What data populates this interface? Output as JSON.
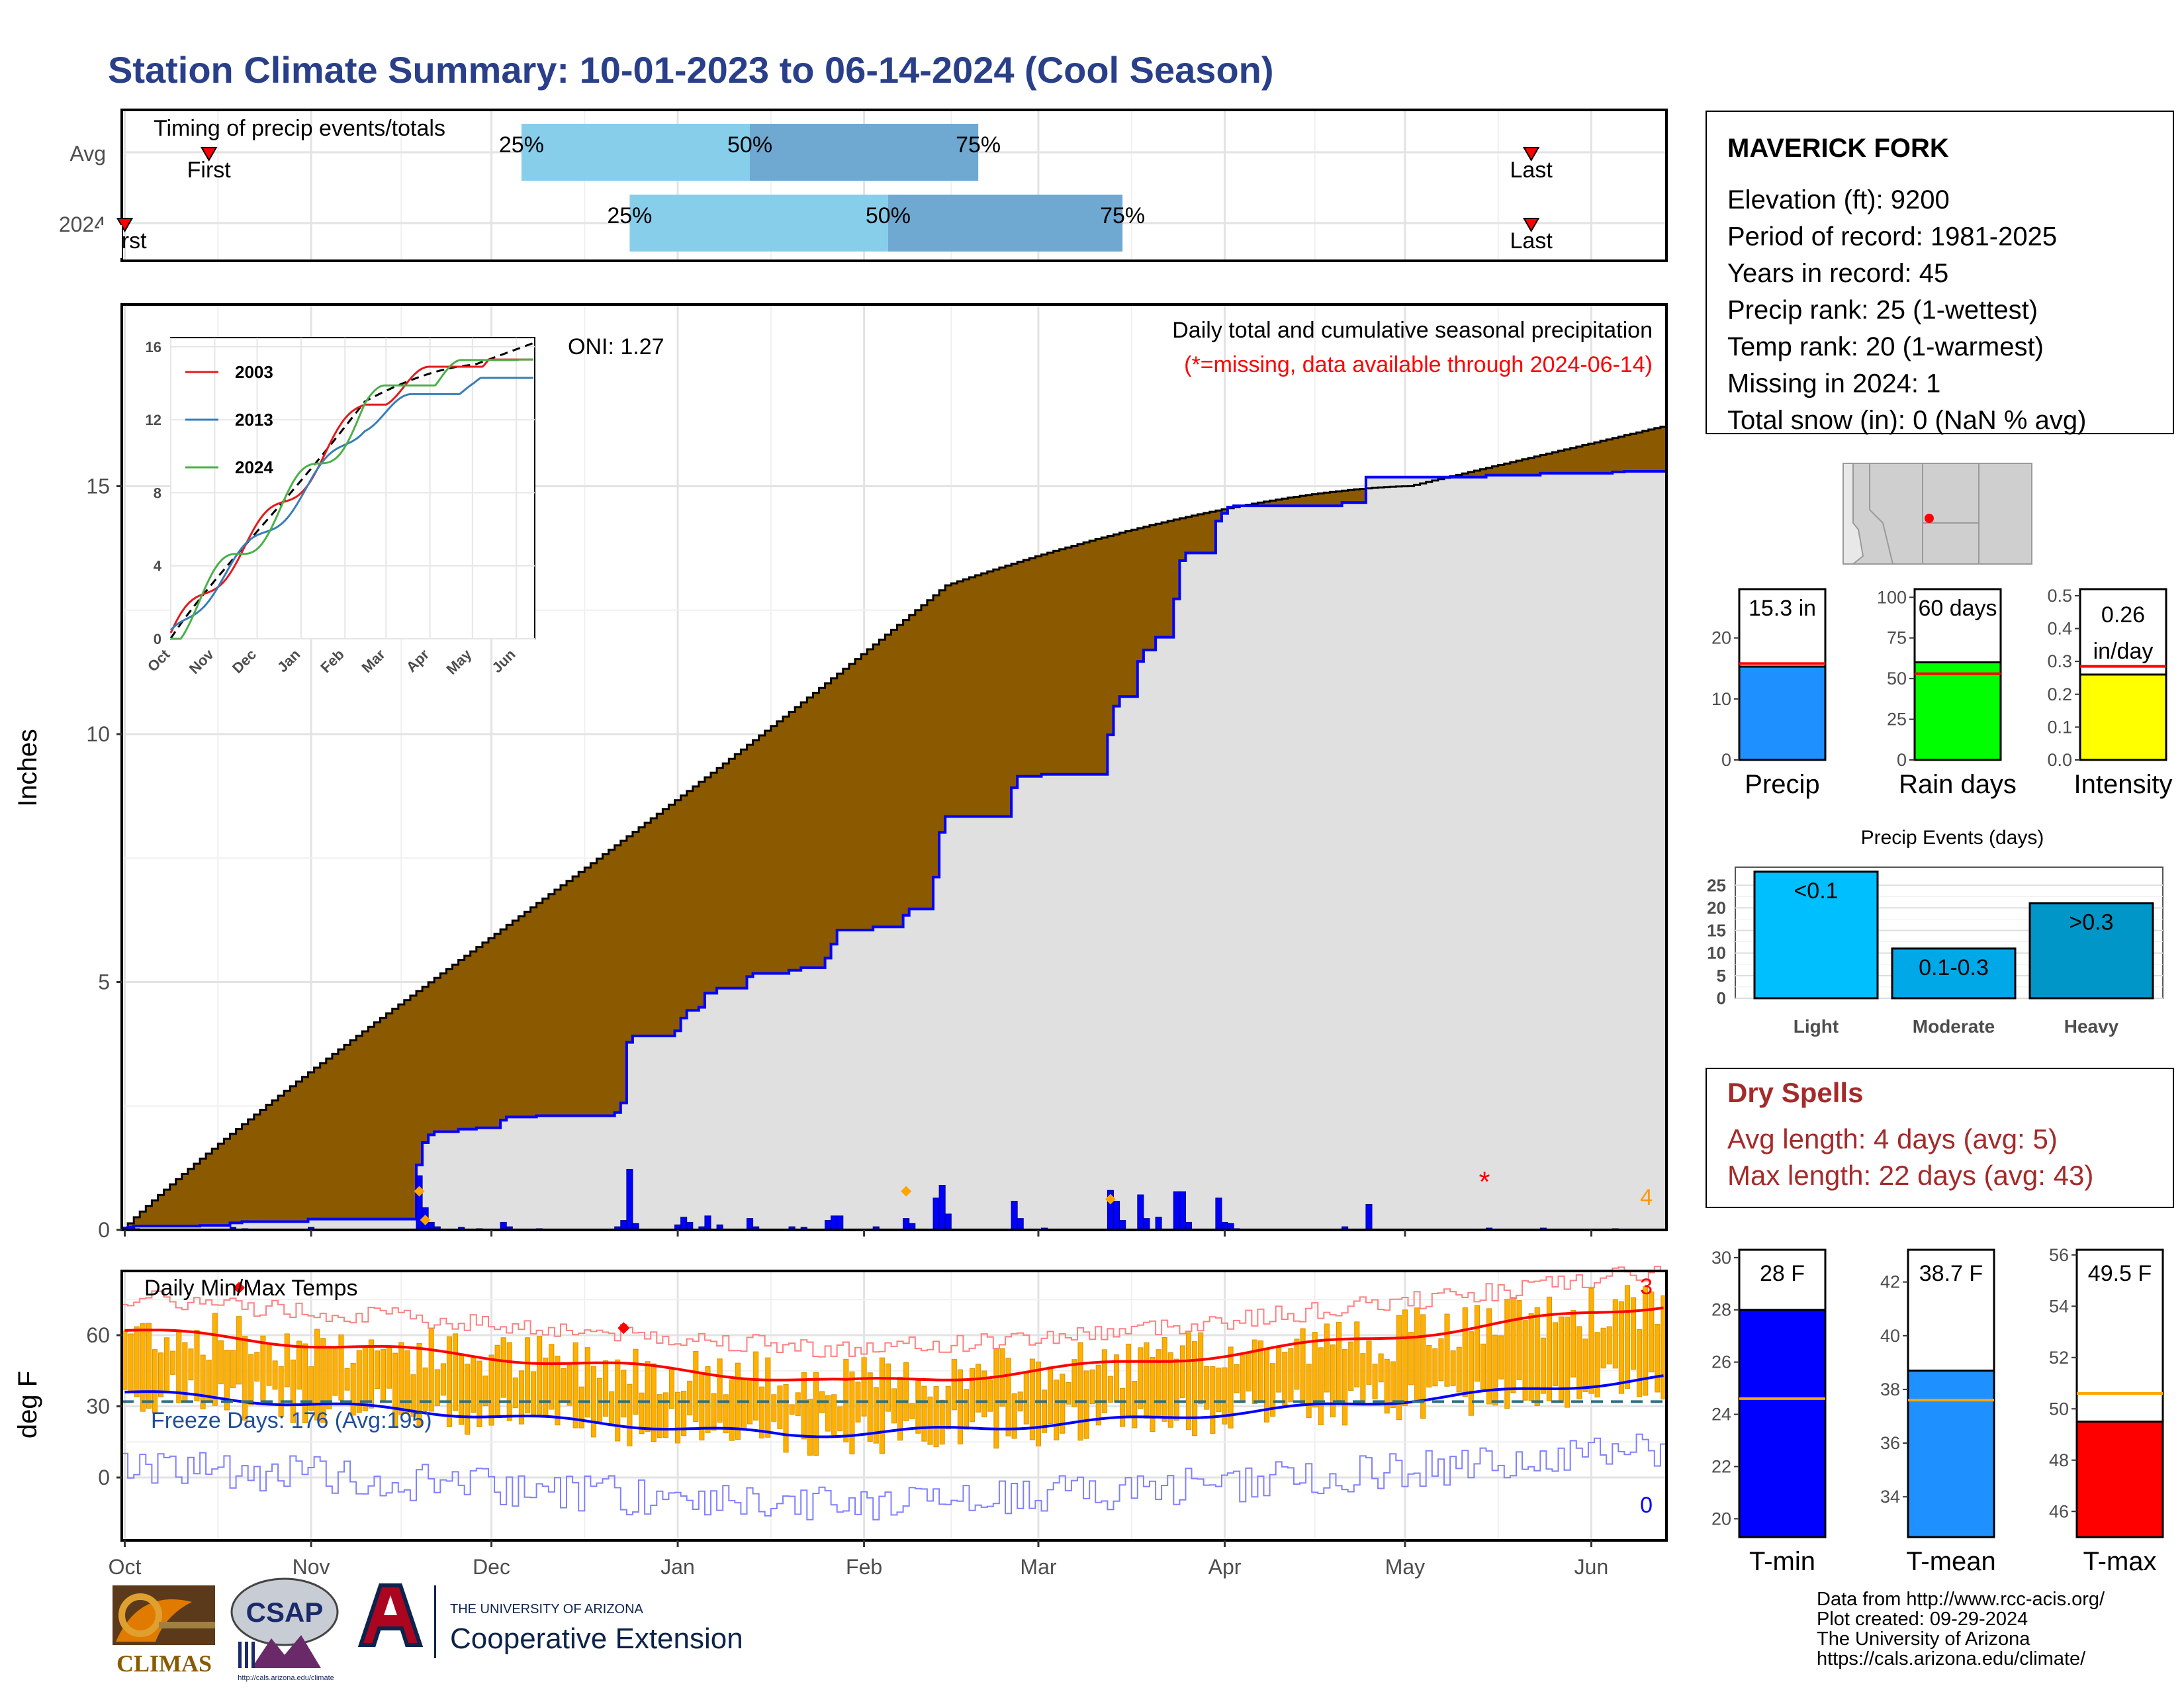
{
  "title": "Station Climate Summary: 10-01-2023 to 06-14-2024 (Cool Season)",
  "months": [
    "Oct",
    "Nov",
    "Dec",
    "Jan",
    "Feb",
    "Mar",
    "Apr",
    "May",
    "Jun"
  ],
  "timing": {
    "title": "Timing of precip events/totals",
    "rows": [
      {
        "label": "Avg",
        "first_label": "First",
        "last_label": "Last",
        "p25_label": "25%",
        "p50_label": "50%",
        "p75_label": "75%",
        "first_day": 14,
        "last_day": 234,
        "p25_day": 66,
        "p50_day": 104,
        "p75_day": 142
      },
      {
        "label": "2024",
        "first_label": "First",
        "last_label": "Last",
        "p25_label": "25%",
        "p50_label": "50%",
        "p75_label": "75%",
        "first_day": 0,
        "last_day": 234,
        "p25_day": 84,
        "p50_day": 127,
        "p75_day": 166
      }
    ]
  },
  "precip_panel": {
    "ylabel": "Inches",
    "yticks": [
      "0",
      "5",
      "10",
      "15"
    ],
    "annotation_title": "Daily total and cumulative seasonal precipitation",
    "annotation_missing": "(*=missing, data available through 2024-06-14)",
    "oni": "ONI: 1.27",
    "right_count": "4"
  },
  "inset": {
    "yticks": [
      "0",
      "4",
      "8",
      "12",
      "16"
    ],
    "xticks": [
      "Oct",
      "Nov",
      "Dec",
      "Jan",
      "Feb",
      "Mar",
      "Apr",
      "May",
      "Jun"
    ],
    "legend": [
      {
        "name": "2003",
        "color": "#e41a1c"
      },
      {
        "name": "2013",
        "color": "#377eb8"
      },
      {
        "name": "2024",
        "color": "#4daf4a"
      }
    ]
  },
  "temp_panel": {
    "ylabel": "deg F",
    "title": "Daily Min/Max Temps",
    "yticks": [
      "0",
      "30",
      "60"
    ],
    "freeze_label": "Freeze Days: 176 (Avg:195)",
    "count_top": "3",
    "count_bottom": "0"
  },
  "station": {
    "name": "MAVERICK FORK",
    "lines": [
      "Elevation (ft): 9200",
      "Period of record: 1981-2025",
      "Years in record: 45",
      "Precip rank: 25 (1-wettest)",
      "Temp rank: 20 (1-warmest)",
      "Missing in 2024: 1",
      "Total snow (in): 0 (NaN % avg)"
    ]
  },
  "mini_bars": [
    {
      "label": "Precip",
      "value_text": "15.3 in",
      "value": 15.3,
      "avg": 15.8,
      "ymax": 28,
      "yticks": [
        "0",
        "10",
        "20"
      ],
      "tickvals": [
        0,
        10,
        20
      ],
      "color": "#1e90ff"
    },
    {
      "label": "Rain days",
      "value_text": "60 days",
      "value": 60,
      "avg": 53,
      "ymax": 105,
      "yticks": [
        "0",
        "25",
        "50",
        "75",
        "100"
      ],
      "tickvals": [
        0,
        25,
        50,
        75,
        100
      ],
      "color": "#00ff00"
    },
    {
      "label": "Intensity",
      "value_text": "0.26 in/day",
      "value": 0.26,
      "avg": 0.285,
      "ymax": 0.52,
      "yticks": [
        "0.0",
        "0.1",
        "0.2",
        "0.3",
        "0.4",
        "0.5"
      ],
      "tickvals": [
        0,
        0.1,
        0.2,
        0.3,
        0.4,
        0.5
      ],
      "color": "#ffff00"
    }
  ],
  "events": {
    "title": "Precip Events (days)",
    "yticks": [
      "0",
      "5",
      "10",
      "15",
      "20",
      "25"
    ],
    "bars": [
      {
        "label": "Light",
        "text": "<0.1",
        "value": 28,
        "color": "#00bfff"
      },
      {
        "label": "Moderate",
        "text": "0.1-0.3",
        "value": 11,
        "color": "#00a8e8"
      },
      {
        "label": "Heavy",
        "text": ">0.3",
        "value": 21,
        "color": "#0096c7"
      }
    ]
  },
  "dry_spells": {
    "title": "Dry Spells",
    "avg_line": "Avg length: 4 days (avg: 5)",
    "max_line": "Max length: 22 days (avg: 43)"
  },
  "temp_bars": [
    {
      "label": "T-min",
      "value_text": "28 F",
      "value": 28,
      "avg": 24.6,
      "ymin": 19.3,
      "ymax": 30.3,
      "yticks": [
        "20",
        "22",
        "24",
        "26",
        "28",
        "30"
      ],
      "tickvals": [
        20,
        22,
        24,
        26,
        28,
        30
      ],
      "color": "#0000ff"
    },
    {
      "label": "T-mean",
      "value_text": "38.7 F",
      "value": 38.7,
      "avg": 37.6,
      "ymin": 32.5,
      "ymax": 43.2,
      "yticks": [
        "34",
        "36",
        "38",
        "40",
        "42"
      ],
      "tickvals": [
        34,
        36,
        38,
        40,
        42
      ],
      "color": "#1e90ff"
    },
    {
      "label": "T-max",
      "value_text": "49.5 F",
      "value": 49.5,
      "avg": 50.6,
      "ymin": 45.0,
      "ymax": 56.2,
      "yticks": [
        "46",
        "48",
        "50",
        "52",
        "54",
        "56"
      ],
      "tickvals": [
        46,
        48,
        50,
        52,
        54,
        56
      ],
      "color": "#ff0000"
    }
  ],
  "footer": {
    "lines": [
      "Data from http://www.rcc-acis.org/",
      "Plot created: 09-29-2024",
      "The University of Arizona",
      "https://cals.arizona.edu/climate/"
    ],
    "logo_climas": "CLIMAS",
    "logo_csap": "CSAP",
    "logo_csap_url": "http://cals.arizona.edu/climate",
    "ua_small": "THE UNIVERSITY OF ARIZONA",
    "ua_big": "Cooperative Extension"
  },
  "colors": {
    "title": "#2a3f8a",
    "cumulative_fill": "#8b5a00",
    "current_line": "#0000ff",
    "current_fill": "#e0e0e0",
    "bars": "#ffb000"
  }
}
